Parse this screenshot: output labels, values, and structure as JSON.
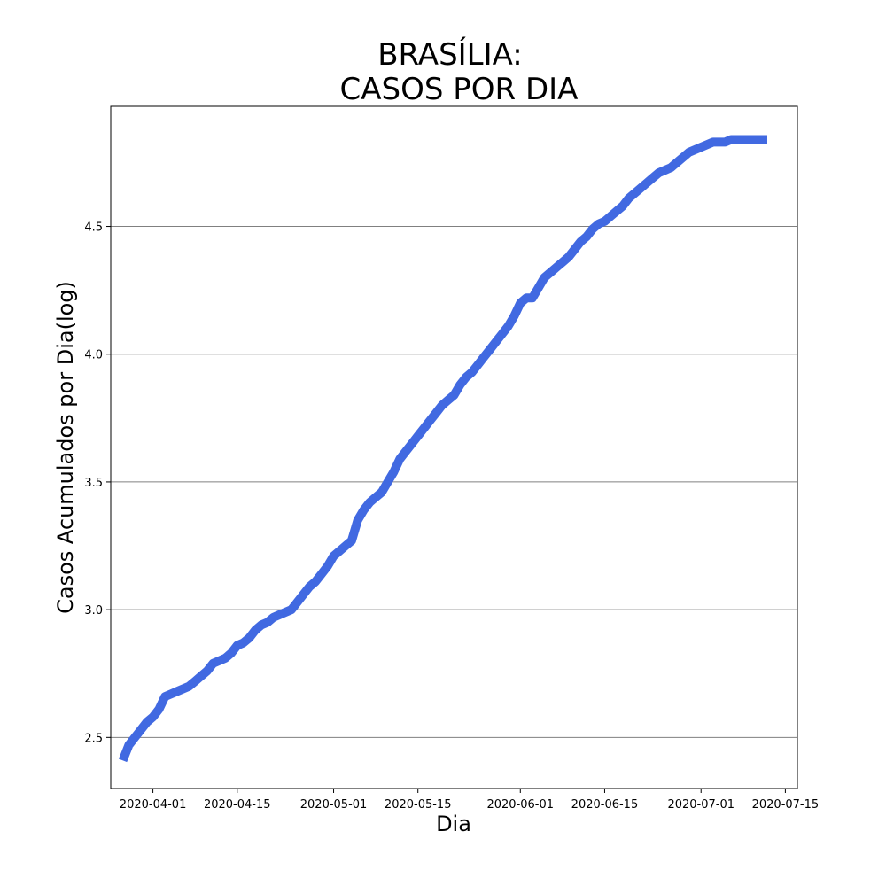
{
  "chart_data": {
    "type": "line",
    "title_line1": "BRASÍLIA:",
    "title_line2": "CASOS POR DIA",
    "xlabel": "Dia",
    "ylabel": "Casos Acumulados por Dia(log)",
    "x_ticks": [
      "2020-04-01",
      "2020-04-15",
      "2020-05-01",
      "2020-05-15",
      "2020-06-01",
      "2020-06-15",
      "2020-07-01",
      "2020-07-15"
    ],
    "y_ticks": [
      "2.5",
      "3.0",
      "3.5",
      "4.0",
      "4.5"
    ],
    "xlim": [
      "2020-03-25",
      "2020-07-17"
    ],
    "ylim": [
      2.3,
      4.97
    ],
    "grid": "horizontal",
    "line_color": "#4169e1",
    "grid_color": "#808080",
    "series": [
      {
        "x": [
          "2020-03-27",
          "2020-03-28",
          "2020-03-29",
          "2020-03-30",
          "2020-03-31",
          "2020-04-01",
          "2020-04-02",
          "2020-04-03",
          "2020-04-04",
          "2020-04-05",
          "2020-04-06",
          "2020-04-07",
          "2020-04-08",
          "2020-04-09",
          "2020-04-10",
          "2020-04-11",
          "2020-04-12",
          "2020-04-13",
          "2020-04-14",
          "2020-04-15",
          "2020-04-16",
          "2020-04-17",
          "2020-04-18",
          "2020-04-19",
          "2020-04-20",
          "2020-04-21",
          "2020-04-22",
          "2020-04-23",
          "2020-04-24",
          "2020-04-25",
          "2020-04-26",
          "2020-04-27",
          "2020-04-28",
          "2020-04-29",
          "2020-04-30",
          "2020-05-01",
          "2020-05-02",
          "2020-05-03",
          "2020-05-04",
          "2020-05-05",
          "2020-05-06",
          "2020-05-07",
          "2020-05-08",
          "2020-05-09",
          "2020-05-10",
          "2020-05-11",
          "2020-05-12",
          "2020-05-13",
          "2020-05-14",
          "2020-05-15",
          "2020-05-16",
          "2020-05-17",
          "2020-05-18",
          "2020-05-19",
          "2020-05-20",
          "2020-05-21",
          "2020-05-22",
          "2020-05-23",
          "2020-05-24",
          "2020-05-25",
          "2020-05-26",
          "2020-05-27",
          "2020-05-28",
          "2020-05-29",
          "2020-05-30",
          "2020-05-31",
          "2020-06-01",
          "2020-06-02",
          "2020-06-03",
          "2020-06-04",
          "2020-06-05",
          "2020-06-06",
          "2020-06-07",
          "2020-06-08",
          "2020-06-09",
          "2020-06-10",
          "2020-06-11",
          "2020-06-12",
          "2020-06-13",
          "2020-06-14",
          "2020-06-15",
          "2020-06-16",
          "2020-06-17",
          "2020-06-18",
          "2020-06-19",
          "2020-06-20",
          "2020-06-21",
          "2020-06-22",
          "2020-06-23",
          "2020-06-24",
          "2020-06-25",
          "2020-06-26",
          "2020-06-27",
          "2020-06-28",
          "2020-06-29",
          "2020-06-30",
          "2020-07-01",
          "2020-07-02",
          "2020-07-03",
          "2020-07-04",
          "2020-07-05",
          "2020-07-06",
          "2020-07-07",
          "2020-07-08",
          "2020-07-09",
          "2020-07-10",
          "2020-07-11",
          "2020-07-12"
        ],
        "y": [
          2.41,
          2.47,
          2.5,
          2.53,
          2.56,
          2.58,
          2.61,
          2.66,
          2.67,
          2.68,
          2.69,
          2.7,
          2.72,
          2.74,
          2.76,
          2.79,
          2.8,
          2.81,
          2.83,
          2.86,
          2.87,
          2.89,
          2.92,
          2.94,
          2.95,
          2.97,
          2.98,
          2.99,
          3.0,
          3.03,
          3.06,
          3.09,
          3.11,
          3.14,
          3.17,
          3.21,
          3.23,
          3.25,
          3.27,
          3.35,
          3.39,
          3.42,
          3.44,
          3.46,
          3.5,
          3.54,
          3.59,
          3.62,
          3.65,
          3.68,
          3.71,
          3.74,
          3.77,
          3.8,
          3.82,
          3.84,
          3.88,
          3.91,
          3.93,
          3.96,
          3.99,
          4.02,
          4.05,
          4.08,
          4.11,
          4.15,
          4.2,
          4.22,
          4.22,
          4.26,
          4.3,
          4.32,
          4.34,
          4.36,
          4.38,
          4.41,
          4.44,
          4.46,
          4.49,
          4.51,
          4.52,
          4.54,
          4.56,
          4.58,
          4.61,
          4.63,
          4.65,
          4.67,
          4.69,
          4.71,
          4.72,
          4.73,
          4.75,
          4.77,
          4.79,
          4.8,
          4.81,
          4.82,
          4.83,
          4.83,
          4.83,
          4.84,
          4.84,
          4.84,
          4.84,
          4.84,
          4.84,
          4.84
        ]
      }
    ]
  }
}
